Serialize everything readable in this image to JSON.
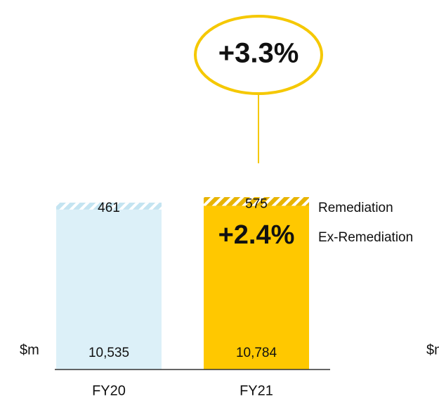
{
  "chart_data": {
    "type": "stacked_bar",
    "unit_label": "$m",
    "categories": [
      "FY20",
      "FY21"
    ],
    "series": [
      {
        "name": "Ex-Remediation",
        "colors": [
          "#dcf0f8",
          "#ffc800"
        ],
        "values": [
          10535,
          10784
        ],
        "value_labels": [
          "10,535",
          "10,784"
        ]
      },
      {
        "name": "Remediation",
        "colors": [
          "#c4e4f1",
          "#e8b400"
        ],
        "values": [
          461,
          575
        ]
      }
    ],
    "ylim": [
      0,
      11500
    ],
    "annotations": [
      {
        "text": "+3.3%",
        "style": "circle"
      },
      {
        "text": "+2.4%",
        "style": "inside"
      }
    ]
  }
}
